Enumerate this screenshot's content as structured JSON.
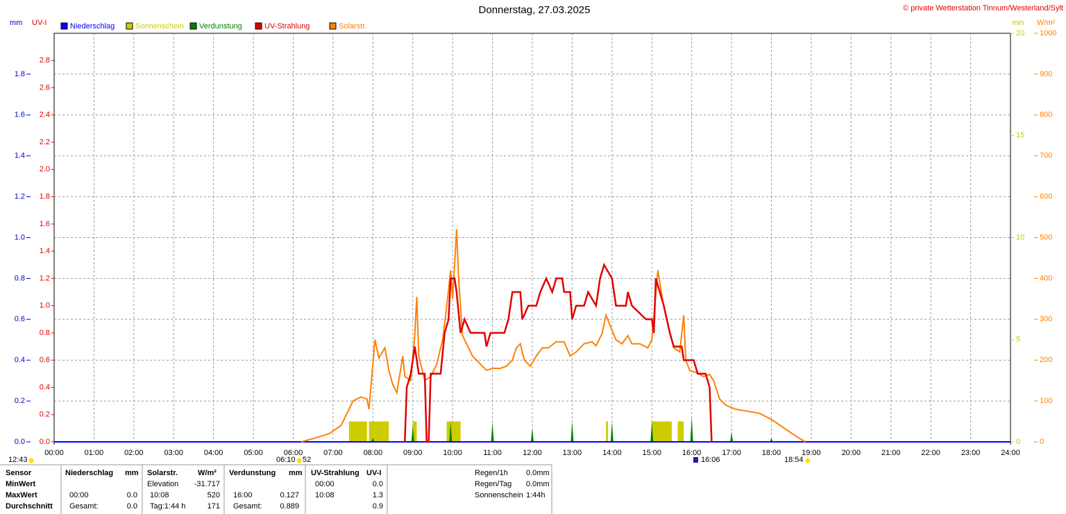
{
  "chart_data": {
    "type": "line",
    "title": "Donnerstag, 27.03.2025",
    "subtitle": "© private Wetterstation Tinnum/Westerland/Sylt",
    "y_label": "mm",
    "uv_label": "UV-I",
    "min_label": "min",
    "y2_label": "W/m²",
    "grid": true,
    "xlim": [
      0,
      24
    ],
    "xticks": [
      {
        "value": 0,
        "label": "00:00"
      },
      {
        "value": 1,
        "label": "01:00"
      },
      {
        "value": 2,
        "label": "02:00"
      },
      {
        "value": 3,
        "label": "03:00"
      },
      {
        "value": 4,
        "label": "04:00"
      },
      {
        "value": 5,
        "label": "05:00"
      },
      {
        "value": 6,
        "label": "06:00"
      },
      {
        "value": 7,
        "label": "07:00"
      },
      {
        "value": 8,
        "label": "08:00"
      },
      {
        "value": 9,
        "label": "09:00"
      },
      {
        "value": 10,
        "label": "10:00"
      },
      {
        "value": 11,
        "label": "11:00"
      },
      {
        "value": 12,
        "label": "12:00"
      },
      {
        "value": 13,
        "label": "13:00"
      },
      {
        "value": 14,
        "label": "14:00"
      },
      {
        "value": 15,
        "label": "15:00"
      },
      {
        "value": 16,
        "label": "16:00"
      },
      {
        "value": 17,
        "label": "17:00"
      },
      {
        "value": 18,
        "label": "18:00"
      },
      {
        "value": 19,
        "label": "19:00"
      },
      {
        "value": 20,
        "label": "20:00"
      },
      {
        "value": 21,
        "label": "21:00"
      },
      {
        "value": 22,
        "label": "22:00"
      },
      {
        "value": 23,
        "label": "23:00"
      },
      {
        "value": 24,
        "label": "24:00"
      }
    ],
    "ylim": [
      0,
      2
    ],
    "yticks": [
      {
        "value": 0,
        "label": "0.0"
      },
      {
        "value": 0.2,
        "label": "0.2"
      },
      {
        "value": 0.4,
        "label": "0.4"
      },
      {
        "value": 0.6,
        "label": "0.6"
      },
      {
        "value": 0.8,
        "label": "0.8"
      },
      {
        "value": 1.0,
        "label": "1.0"
      },
      {
        "value": 1.2,
        "label": "1.2"
      },
      {
        "value": 1.4,
        "label": "1.4"
      },
      {
        "value": 1.6,
        "label": "1.6"
      },
      {
        "value": 1.8,
        "label": "1.8"
      }
    ],
    "uvlim": [
      0,
      3
    ],
    "uvticks": [
      {
        "value": 0,
        "label": "0.0"
      },
      {
        "value": 0.2,
        "label": "0.2"
      },
      {
        "value": 0.4,
        "label": "0.4"
      },
      {
        "value": 0.6,
        "label": "0.6"
      },
      {
        "value": 0.8,
        "label": "0.8"
      },
      {
        "value": 1.0,
        "label": "1.0"
      },
      {
        "value": 1.2,
        "label": "1.2"
      },
      {
        "value": 1.4,
        "label": "1.4"
      },
      {
        "value": 1.6,
        "label": "1.6"
      },
      {
        "value": 1.8,
        "label": "1.8"
      },
      {
        "value": 2.0,
        "label": "2.0"
      },
      {
        "value": 2.2,
        "label": "2.2"
      },
      {
        "value": 2.4,
        "label": "2.4"
      },
      {
        "value": 2.6,
        "label": "2.6"
      },
      {
        "value": 2.8,
        "label": "2.8"
      }
    ],
    "minlim": [
      0,
      20
    ],
    "minticks": [
      0,
      5,
      10,
      15,
      20
    ],
    "y2lim": [
      0,
      1000
    ],
    "y2ticks": [
      0,
      100,
      200,
      300,
      400,
      500,
      600,
      700,
      800,
      900,
      1000
    ],
    "series": [
      {
        "name": "Niederschlag",
        "color": "#0000ff",
        "kind": "line",
        "axis": "y",
        "x": [
          0,
          24
        ],
        "values": [
          0,
          0
        ]
      },
      {
        "name": "Sonnenschein",
        "color": "#cccc00",
        "kind": "bar",
        "axis": "min",
        "x_start": [
          7.4,
          7.9,
          9.0,
          9.85,
          13.85,
          15.0,
          15.65
        ],
        "x_end": [
          7.85,
          8.4,
          9.1,
          10.2,
          13.9,
          15.5,
          15.8
        ],
        "values": [
          1,
          1,
          1,
          1,
          1,
          1,
          1
        ]
      },
      {
        "name": "Verdunstung",
        "color": "#008000",
        "kind": "spike",
        "axis": "y",
        "x": [
          8.0,
          9.0,
          9.95,
          11.0,
          12.0,
          13.0,
          14.0,
          15.0,
          16.0,
          17.0,
          18.0
        ],
        "values": [
          0.02,
          0.08,
          0.1,
          0.1,
          0.07,
          0.1,
          0.1,
          0.1,
          0.127,
          0.05,
          0.02
        ]
      },
      {
        "name": "UV-Strahlung",
        "color": "#e00000",
        "kind": "line",
        "axis": "uv",
        "x": [
          8.8,
          8.85,
          8.95,
          9.05,
          9.15,
          9.3,
          9.35,
          9.4,
          9.45,
          9.7,
          9.8,
          9.9,
          9.95,
          10.05,
          10.1,
          10.2,
          10.3,
          10.45,
          10.8,
          10.85,
          10.95,
          11.3,
          11.4,
          11.5,
          11.7,
          11.75,
          11.9,
          12.1,
          12.2,
          12.35,
          12.5,
          12.6,
          12.75,
          12.8,
          12.95,
          13.0,
          13.1,
          13.3,
          13.4,
          13.6,
          13.7,
          13.8,
          14.0,
          14.1,
          14.35,
          14.4,
          14.5,
          14.85,
          15.0,
          15.05,
          15.1,
          15.3,
          15.45,
          15.55,
          15.75,
          15.8,
          16.05,
          16.15,
          16.35,
          16.45,
          16.5
        ],
        "values": [
          0,
          0.4,
          0.5,
          0.7,
          0.5,
          0.5,
          0,
          0,
          0.5,
          0.5,
          0.8,
          0.9,
          1.2,
          1.2,
          1.1,
          0.8,
          0.9,
          0.8,
          0.8,
          0.7,
          0.8,
          0.8,
          0.9,
          1.1,
          1.1,
          0.9,
          1.0,
          1.0,
          1.1,
          1.2,
          1.1,
          1.2,
          1.2,
          1.1,
          1.1,
          0.9,
          1.0,
          1.0,
          1.1,
          1.0,
          1.2,
          1.3,
          1.2,
          1.0,
          1.0,
          1.1,
          1.0,
          0.9,
          0.9,
          0.8,
          1.2,
          1.0,
          0.8,
          0.7,
          0.7,
          0.6,
          0.6,
          0.5,
          0.5,
          0.4,
          0
        ]
      },
      {
        "name": "Solarstr.",
        "color": "#ff8000",
        "kind": "line",
        "axis": "y2",
        "x": [
          6.2,
          6.5,
          6.9,
          7.2,
          7.4,
          7.5,
          7.7,
          7.85,
          7.9,
          8.0,
          8.05,
          8.15,
          8.3,
          8.4,
          8.5,
          8.6,
          8.75,
          8.8,
          8.95,
          9.05,
          9.1,
          9.15,
          9.3,
          9.45,
          9.6,
          9.75,
          9.85,
          9.95,
          10.0,
          10.1,
          10.15,
          10.25,
          10.4,
          10.5,
          10.7,
          10.85,
          11.0,
          11.2,
          11.35,
          11.5,
          11.6,
          11.7,
          11.8,
          11.95,
          12.1,
          12.25,
          12.4,
          12.6,
          12.8,
          12.95,
          13.1,
          13.3,
          13.5,
          13.6,
          13.75,
          13.85,
          13.95,
          14.1,
          14.25,
          14.4,
          14.5,
          14.7,
          14.9,
          15.0,
          15.15,
          15.3,
          15.45,
          15.55,
          15.7,
          15.8,
          15.85,
          15.95,
          16.1,
          16.3,
          16.45,
          16.55,
          16.7,
          16.85,
          17.1,
          17.4,
          17.7,
          18.0,
          18.3,
          18.6,
          18.85
        ],
        "values": [
          0,
          8,
          20,
          40,
          80,
          100,
          110,
          105,
          80,
          190,
          250,
          205,
          230,
          175,
          140,
          120,
          210,
          160,
          150,
          260,
          355,
          210,
          150,
          160,
          190,
          250,
          330,
          420,
          350,
          520,
          400,
          260,
          230,
          210,
          190,
          175,
          180,
          180,
          185,
          200,
          230,
          240,
          200,
          185,
          210,
          230,
          230,
          245,
          245,
          210,
          220,
          240,
          245,
          235,
          265,
          310,
          285,
          250,
          240,
          260,
          240,
          240,
          230,
          250,
          420,
          330,
          270,
          230,
          220,
          310,
          200,
          175,
          170,
          160,
          165,
          150,
          105,
          90,
          80,
          75,
          70,
          55,
          35,
          15,
          0
        ]
      }
    ],
    "annotations": [
      "12:43",
      "06:10",
      "52",
      "16:06",
      "18:54"
    ]
  },
  "table": {
    "header": [
      "Sensor",
      "Niederschlag",
      "mm",
      "Solarstr.",
      "W/m²",
      "Verdunstung",
      "mm",
      "UV-Strahlung",
      "UV-I"
    ],
    "rows": [
      [
        "MinWert",
        null,
        null,
        "Elevation",
        "-31.717",
        null,
        null,
        "00:00",
        "0.0"
      ],
      [
        "MaxWert",
        "00:00",
        "0.0",
        "10:08",
        "520",
        "16:00",
        "0.127",
        "10:08",
        "1.3"
      ],
      [
        "Durchschnitt",
        "Gesamt:",
        "0.0",
        "Tag:1:44 h",
        "171",
        "Gesamt:",
        "0.889",
        null,
        "0.9"
      ]
    ]
  },
  "info": [
    [
      "Regen/1h",
      "0.0mm"
    ],
    [
      "Regen/Tag",
      "0.0mm"
    ],
    [
      "Sonnenschein",
      "1:44h"
    ]
  ]
}
